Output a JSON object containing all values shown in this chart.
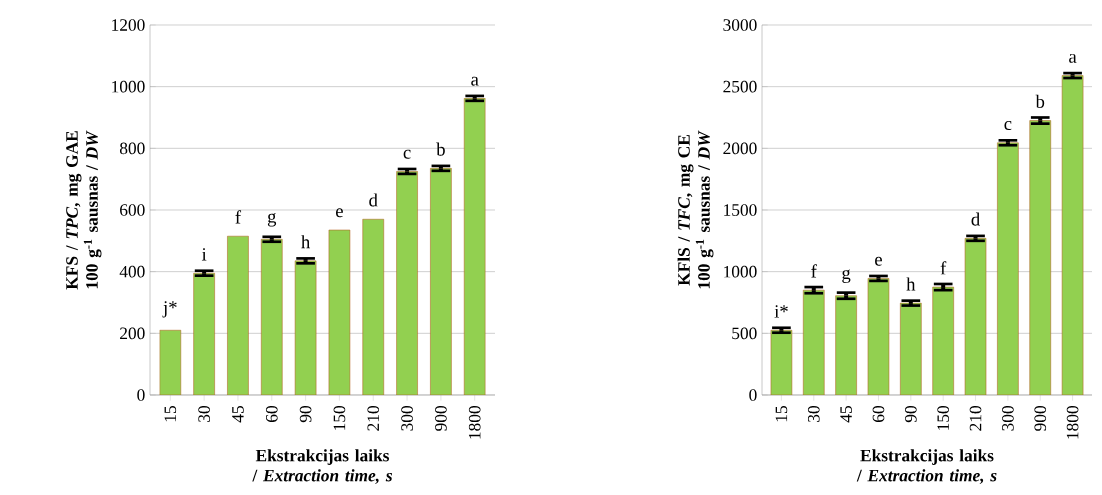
{
  "chart_data": [
    {
      "type": "bar",
      "ylabel": "KFS / *TPC*, mg GAE 100 g$^{-1}$ sausnas / *DW*",
      "xlabel": "Ekstrakcijas laiks / *Extraction time, s*",
      "categories": [
        "15",
        "30",
        "45",
        "60",
        "90",
        "150",
        "210",
        "300",
        "900",
        "1800"
      ],
      "values": [
        210,
        395,
        515,
        505,
        435,
        535,
        570,
        725,
        735,
        962
      ],
      "errors": [
        null,
        8,
        null,
        8,
        8,
        null,
        null,
        8,
        8,
        8
      ],
      "color": "#92d050",
      "ylim": [
        0,
        1200
      ],
      "yticks": [
        0,
        200,
        400,
        600,
        800,
        1000,
        1200
      ],
      "grid": "y",
      "annotations": [
        {
          "text": "j*",
          "x": "15",
          "y": 210
        },
        {
          "text": "i",
          "x": "30",
          "y": 395
        },
        {
          "text": "f",
          "x": "45",
          "y": 515
        },
        {
          "text": "g",
          "x": "60",
          "y": 505
        },
        {
          "text": "h",
          "x": "90",
          "y": 435
        },
        {
          "text": "e",
          "x": "150",
          "y": 535
        },
        {
          "text": "d",
          "x": "210",
          "y": 570
        },
        {
          "text": "c",
          "x": "300",
          "y": 725
        },
        {
          "text": "b",
          "x": "900",
          "y": 735
        },
        {
          "text": "a",
          "x": "1800",
          "y": 962
        }
      ]
    },
    {
      "type": "bar",
      "ylabel": "KFlS / *TFC*, mg CE 100 g$^{-1}$ sausnas / *DW*",
      "xlabel": "Ekstrakcijas laiks / *Extraction time, s*",
      "categories": [
        "15",
        "30",
        "45",
        "60",
        "90",
        "150",
        "210",
        "300",
        "900",
        "1800"
      ],
      "values": [
        525,
        850,
        805,
        945,
        745,
        875,
        1270,
        2045,
        2225,
        2590
      ],
      "errors": [
        20,
        25,
        25,
        20,
        20,
        25,
        20,
        20,
        25,
        20
      ],
      "color": "#92d050",
      "ylim": [
        0,
        3000
      ],
      "yticks": [
        0,
        500,
        1000,
        1500,
        2000,
        2500,
        3000
      ],
      "grid": "y",
      "annotations": [
        {
          "text": "i*",
          "x": "15",
          "y": 525
        },
        {
          "text": "f",
          "x": "30",
          "y": 850
        },
        {
          "text": "g",
          "x": "45",
          "y": 805
        },
        {
          "text": "e",
          "x": "60",
          "y": 945
        },
        {
          "text": "h",
          "x": "90",
          "y": 745
        },
        {
          "text": "f",
          "x": "150",
          "y": 875
        },
        {
          "text": "d",
          "x": "210",
          "y": 1270
        },
        {
          "text": "c",
          "x": "300",
          "y": 2045
        },
        {
          "text": "b",
          "x": "900",
          "y": 2225
        },
        {
          "text": "a",
          "x": "1800",
          "y": 2590
        }
      ]
    }
  ]
}
